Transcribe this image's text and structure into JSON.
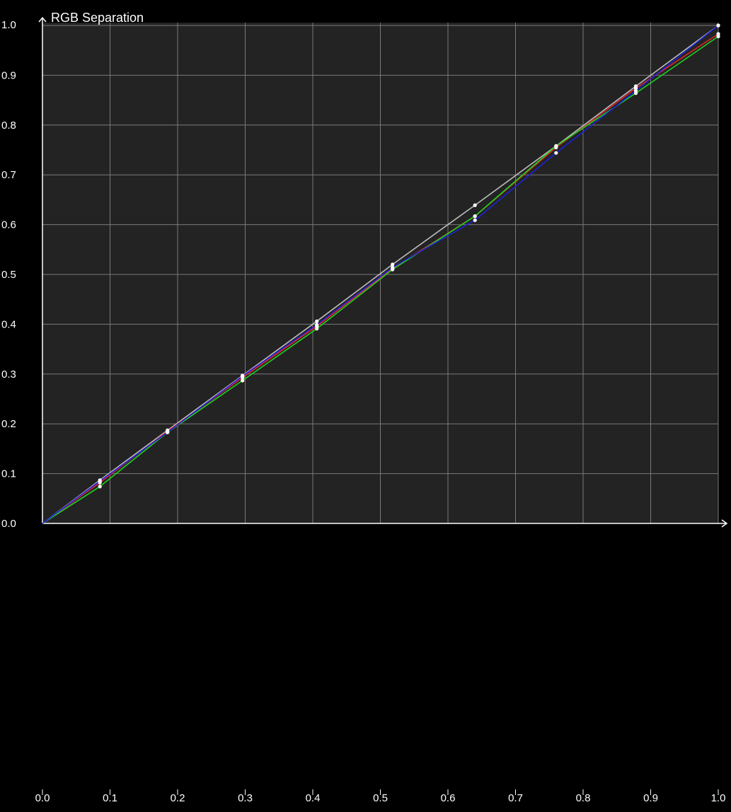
{
  "colors": {
    "background": "#000000",
    "plot_area": "#232323",
    "grid": "#7a7a7a",
    "axis": "#ffffff",
    "text": "#ffffff",
    "red": "#e0282b",
    "green": "#1ed21e",
    "blue": "#2020d8",
    "reference": "#bdbdbd",
    "marker": "#ffffff"
  },
  "chart_data": {
    "type": "line",
    "title": "RGB Separation",
    "xlabel": "",
    "ylabel": "",
    "xlim": [
      0,
      1
    ],
    "ylim": [
      0,
      1
    ],
    "grid": true,
    "x_ticks": [
      "0.0",
      "0.1",
      "0.2",
      "0.3",
      "0.4",
      "0.5",
      "0.6",
      "0.7",
      "0.8",
      "0.9",
      "1.0"
    ],
    "y_ticks": [
      "0.0",
      "0.1",
      "0.2",
      "0.3",
      "0.4",
      "0.5",
      "0.6",
      "0.7",
      "0.8",
      "0.9",
      "1.0"
    ],
    "x": [
      0.0,
      0.085,
      0.185,
      0.296,
      0.406,
      0.518,
      0.64,
      0.76,
      0.878,
      1.0
    ],
    "series": [
      {
        "color": "#bdbdbd",
        "values": [
          0.0,
          0.087,
          0.187,
          0.297,
          0.406,
          0.52,
          0.639,
          0.758,
          0.878,
          1.0
        ]
      },
      {
        "color": "#e0282b",
        "values": [
          0.0,
          0.082,
          0.185,
          0.293,
          0.396,
          0.512,
          0.617,
          0.755,
          0.874,
          0.983
        ]
      },
      {
        "color": "#1ed21e",
        "values": [
          0.0,
          0.074,
          0.183,
          0.287,
          0.391,
          0.51,
          0.617,
          0.758,
          0.864,
          0.978
        ]
      },
      {
        "color": "#2020d8",
        "values": [
          0.0,
          0.085,
          0.183,
          0.296,
          0.399,
          0.514,
          0.609,
          0.744,
          0.869,
          1.0
        ]
      }
    ]
  }
}
